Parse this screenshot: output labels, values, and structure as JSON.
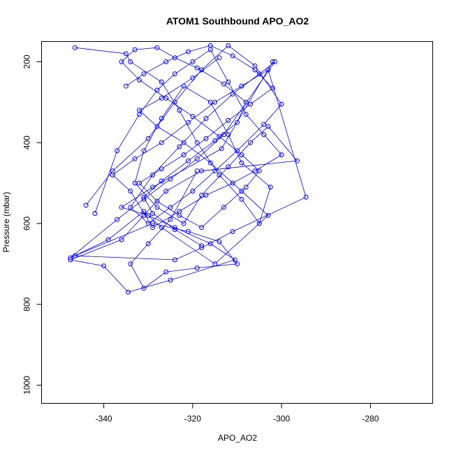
{
  "chart_data": {
    "type": "line",
    "title": "ATOM1 Southbound APO_AO2",
    "xlabel": "APO_AO2",
    "ylabel": "Pressure (mbar)",
    "xlim": [
      -354,
      -266
    ],
    "ylim": [
      1045,
      150
    ],
    "y_reversed": true,
    "x_ticks": [
      -340,
      -320,
      -300,
      -280
    ],
    "y_ticks": [
      200,
      400,
      600,
      800,
      1000
    ],
    "grid": false,
    "legend": "none",
    "series_color": "#0000ff",
    "marker": "open-circle",
    "series": [
      {
        "x": [
          -346.5,
          -335,
          -334,
          -327,
          -323,
          -319,
          -314,
          -309,
          -305,
          -302.5,
          -309,
          -312,
          -316,
          -322,
          -327,
          -331,
          -333,
          -328,
          -322,
          -318,
          -312,
          -307,
          -303,
          -296.5,
          -318,
          -326,
          -331,
          -336,
          -347.5,
          -340,
          -334.5,
          -325,
          -310.5,
          -316,
          -324,
          -330,
          -336,
          -329,
          -313.5,
          -302
        ],
        "y": [
          165,
          180,
          200,
          250,
          320,
          400,
          480,
          540,
          600,
          510,
          450,
          380,
          300,
          260,
          340,
          420,
          500,
          560,
          600,
          530,
          460,
          400,
          360,
          445,
          470,
          520,
          580,
          640,
          690,
          705,
          770,
          740,
          690,
          650,
          610,
          580,
          560,
          510,
          415,
          200
        ]
      },
      {
        "x": [
          -344,
          -338,
          -330,
          -324,
          -318,
          -312,
          -306,
          -300,
          -304,
          -310,
          -315,
          -320,
          -325,
          -330,
          -334,
          -329,
          -323,
          -317,
          -311,
          -305,
          -301.5,
          -313,
          -319,
          -325,
          -331,
          -337,
          -347.5,
          -339,
          -331,
          -327,
          -315,
          -303,
          -309,
          -316,
          -322,
          -328,
          -332,
          -327,
          -320,
          -314
        ],
        "y": [
          555,
          470,
          390,
          300,
          220,
          160,
          210,
          305,
          355,
          420,
          470,
          520,
          560,
          600,
          560,
          480,
          410,
          340,
          280,
          230,
          200,
          380,
          440,
          490,
          540,
          590,
          685,
          640,
          570,
          610,
          700,
          580,
          520,
          450,
          400,
          360,
          320,
          290,
          240,
          190
        ]
      },
      {
        "x": [
          -342,
          -337,
          -332,
          -328,
          -324,
          -320,
          -316,
          -312,
          -308,
          -304,
          -300,
          -306,
          -311,
          -317,
          -323,
          -329,
          -334,
          -338,
          -333,
          -327,
          -321,
          -315,
          -309,
          -303,
          -294.5,
          -311,
          -318,
          -324,
          -346.5,
          -329,
          -321,
          -314,
          -310,
          -319,
          -326,
          -331,
          -334,
          -330,
          -325,
          -319
        ],
        "y": [
          575,
          420,
          330,
          270,
          230,
          200,
          170,
          250,
          330,
          380,
          430,
          470,
          500,
          530,
          570,
          610,
          520,
          480,
          440,
          400,
          350,
          300,
          260,
          220,
          535,
          620,
          660,
          690,
          680,
          600,
          620,
          645,
          700,
          710,
          720,
          760,
          700,
          650,
          590,
          470
        ]
      },
      {
        "x": [
          -335,
          -331,
          -326,
          -321,
          -316,
          -311,
          -306,
          -302,
          -307,
          -312,
          -317,
          -322,
          -327,
          -332,
          -328,
          -323,
          -318,
          -313,
          -308,
          -305,
          -309,
          -314,
          -320,
          -326,
          -332,
          -336,
          -333,
          -328,
          -324,
          -319,
          -313,
          -308,
          -310,
          -315,
          -321,
          -327,
          -331,
          -329,
          -324,
          -318
        ],
        "y": [
          260,
          230,
          200,
          175,
          160,
          185,
          220,
          265,
          305,
          345,
          390,
          430,
          465,
          500,
          545,
          580,
          610,
          560,
          510,
          470,
          430,
          385,
          335,
          290,
          245,
          200,
          170,
          165,
          190,
          215,
          255,
          300,
          350,
          395,
          445,
          495,
          535,
          575,
          615,
          655
        ]
      }
    ]
  }
}
